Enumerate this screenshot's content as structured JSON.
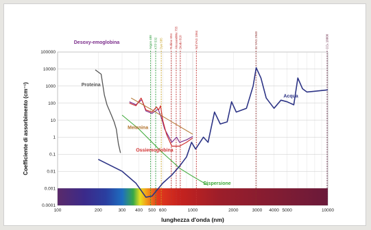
{
  "chart_data": {
    "type": "line",
    "xlabel": "lunghezza d'onda (nm)",
    "ylabel": "Coefficiente di assorbimento (cm⁻¹)",
    "x_scale": "log",
    "y_scale": "log",
    "xlim": [
      100,
      10000
    ],
    "ylim": [
      0.0001,
      100000
    ],
    "x_ticks": [
      "100",
      "200",
      "300",
      "400",
      "500",
      "600",
      "1000",
      "2000",
      "3000",
      "4000",
      "5000",
      "10000"
    ],
    "x_tick_values": [
      100,
      200,
      300,
      400,
      500,
      600,
      1000,
      2000,
      3000,
      4000,
      5000,
      10000
    ],
    "y_ticks": [
      "0.0001",
      "0.001",
      "0.01",
      "0.1",
      "1",
      "10",
      "100",
      "1000",
      "10000",
      "100000"
    ],
    "y_tick_values": [
      0.0001,
      0.001,
      0.01,
      0.1,
      1,
      10,
      100,
      1000,
      10000,
      100000
    ],
    "grid": true,
    "spectrum_band": {
      "from": 0.0001,
      "to": 0.001
    },
    "series": [
      {
        "name": "Proteina",
        "color": "#555555",
        "points": [
          [
            190,
            9000
          ],
          [
            210,
            5000
          ],
          [
            222,
            300
          ],
          [
            232,
            80
          ],
          [
            250,
            20
          ],
          [
            262,
            8
          ],
          [
            272,
            3
          ],
          [
            282,
            0.4
          ],
          [
            292,
            0.12
          ]
        ]
      },
      {
        "name": "Desoxy-emoglobina",
        "color": "#7a2b8a",
        "points": [
          [
            340,
            120
          ],
          [
            380,
            80
          ],
          [
            420,
            160
          ],
          [
            450,
            35
          ],
          [
            500,
            25
          ],
          [
            555,
            45
          ],
          [
            590,
            12
          ],
          [
            620,
            3
          ],
          [
            700,
            0.5
          ],
          [
            760,
            1.0
          ],
          [
            800,
            0.5
          ],
          [
            900,
            0.7
          ],
          [
            1000,
            1.1
          ]
        ]
      },
      {
        "name": "Ossiemoglobina",
        "color": "#d03030",
        "points": [
          [
            340,
            100
          ],
          [
            380,
            70
          ],
          [
            415,
            200
          ],
          [
            450,
            40
          ],
          [
            500,
            30
          ],
          [
            540,
            60
          ],
          [
            560,
            40
          ],
          [
            578,
            70
          ],
          [
            600,
            10
          ],
          [
            640,
            1.5
          ],
          [
            700,
            0.3
          ],
          [
            800,
            0.3
          ],
          [
            900,
            0.5
          ],
          [
            1000,
            0.9
          ]
        ]
      },
      {
        "name": "Melanina",
        "color": "#b0702a",
        "points": [
          [
            350,
            200
          ],
          [
            500,
            40
          ],
          [
            700,
            8
          ],
          [
            1000,
            1.5
          ]
        ]
      },
      {
        "name": "Dispersione",
        "color": "#3aa835",
        "points": [
          [
            300,
            20
          ],
          [
            400,
            3
          ],
          [
            500,
            0.5
          ],
          [
            600,
            0.12
          ],
          [
            700,
            0.04
          ],
          [
            800,
            0.015
          ],
          [
            1000,
            0.005
          ],
          [
            1300,
            0.0015
          ]
        ]
      },
      {
        "name": "Acqua",
        "color": "#2c3385",
        "points": [
          [
            200,
            0.05
          ],
          [
            300,
            0.01
          ],
          [
            380,
            0.002
          ],
          [
            450,
            0.0003
          ],
          [
            500,
            0.00035
          ],
          [
            600,
            0.002
          ],
          [
            700,
            0.006
          ],
          [
            800,
            0.02
          ],
          [
            900,
            0.07
          ],
          [
            980,
            0.5
          ],
          [
            1050,
            0.2
          ],
          [
            1200,
            1.0
          ],
          [
            1300,
            0.5
          ],
          [
            1450,
            30
          ],
          [
            1600,
            6
          ],
          [
            1800,
            8
          ],
          [
            1940,
            120
          ],
          [
            2100,
            30
          ],
          [
            2500,
            50
          ],
          [
            2800,
            1000
          ],
          [
            2950,
            12000
          ],
          [
            3200,
            3000
          ],
          [
            3500,
            200
          ],
          [
            4000,
            50
          ],
          [
            4500,
            150
          ],
          [
            5000,
            120
          ],
          [
            5600,
            80
          ],
          [
            6000,
            3000
          ],
          [
            6500,
            700
          ],
          [
            7000,
            450
          ],
          [
            8000,
            500
          ],
          [
            10000,
            600
          ]
        ]
      }
    ],
    "lasers": [
      {
        "label": "Argon 488",
        "wavelength": 488,
        "color": "#2a9a3a"
      },
      {
        "label": "KTP 532",
        "wavelength": 532,
        "color": "#2a9a3a"
      },
      {
        "label": "Dye 585",
        "wavelength": 585,
        "color": "#c8a020"
      },
      {
        "label": "Rubino 694",
        "wavelength": 694,
        "color": "#c03030"
      },
      {
        "label": "Alessandrite 755",
        "wavelength": 755,
        "color": "#c03030"
      },
      {
        "label": "Diodo 810",
        "wavelength": 810,
        "color": "#c03030"
      },
      {
        "label": "Nd:YAG 1064",
        "wavelength": 1064,
        "color": "#c03030"
      },
      {
        "label": "Er:YAG 2940",
        "wavelength": 2940,
        "color": "#8a2a2a"
      },
      {
        "label": "CO₂ 10600",
        "wavelength": 10600,
        "color": "#6a2a4a"
      }
    ]
  }
}
